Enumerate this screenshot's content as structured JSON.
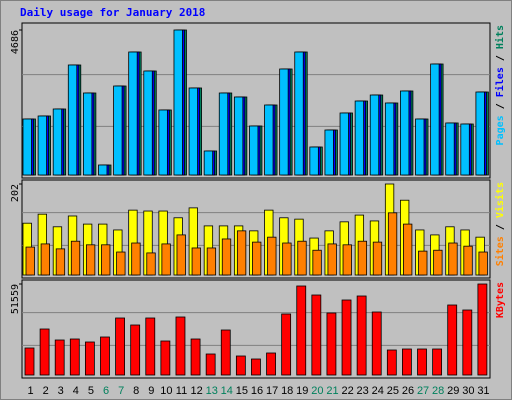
{
  "chart_data": [
    {
      "type": "bar",
      "title": "Daily usage for January 2018",
      "ylim": [
        0,
        4686
      ],
      "yticks": [
        4686
      ],
      "legend_separator": " / ",
      "series": [
        {
          "name": "Hits",
          "color": "#00805c",
          "values": [
            1810,
            1907,
            2133,
            3555,
            2650,
            323,
            2876,
            3975,
            3361,
            2101,
            4686,
            2812,
            776,
            2650,
            2521,
            1584,
            2262,
            3426,
            3975,
            905,
            1454,
            2004,
            2391,
            2585,
            2327,
            2715,
            1810,
            3587,
            1681,
            1648,
            2682
          ]
        },
        {
          "name": "Files",
          "color": "#0000ff",
          "values": [
            1810,
            1907,
            2133,
            3555,
            2650,
            323,
            2876,
            3975,
            3361,
            2101,
            4686,
            2812,
            776,
            2650,
            2521,
            1584,
            2262,
            3426,
            3975,
            905,
            1454,
            2004,
            2391,
            2585,
            2327,
            2715,
            1810,
            3587,
            1681,
            1648,
            2682
          ]
        },
        {
          "name": "Pages",
          "color": "#00c0ff",
          "values": [
            1810,
            1907,
            2133,
            3555,
            2650,
            323,
            2876,
            3975,
            3361,
            2101,
            4686,
            2812,
            776,
            2650,
            2521,
            1584,
            2262,
            3426,
            3975,
            905,
            1454,
            2004,
            2391,
            2585,
            2327,
            2715,
            1810,
            3587,
            1681,
            1648,
            2682
          ]
        }
      ]
    },
    {
      "type": "bar",
      "ylim": [
        0,
        202
      ],
      "yticks": [
        202
      ],
      "legend_separator": " / ",
      "series": [
        {
          "name": "Visits",
          "color": "#ffff00",
          "values": [
            115,
            135,
            107,
            131,
            113,
            113,
            100,
            144,
            142,
            142,
            127,
            149,
            109,
            109,
            109,
            98,
            144,
            127,
            124,
            82,
            98,
            118,
            133,
            120,
            202,
            166,
            100,
            89,
            107,
            100,
            84
          ]
        },
        {
          "name": "Sites",
          "color": "#ff8000",
          "values": [
            62,
            69,
            58,
            75,
            67,
            67,
            51,
            71,
            49,
            69,
            89,
            60,
            60,
            80,
            98,
            73,
            84,
            71,
            75,
            55,
            69,
            67,
            75,
            73,
            138,
            113,
            53,
            55,
            71,
            64,
            51
          ]
        }
      ]
    },
    {
      "type": "bar",
      "ylim": [
        0,
        51559
      ],
      "yticks": [
        51559
      ],
      "categories": [
        "1",
        "2",
        "3",
        "4",
        "5",
        "6",
        "7",
        "8",
        "9",
        "10",
        "11",
        "12",
        "13",
        "14",
        "15",
        "16",
        "17",
        "18",
        "19",
        "20",
        "21",
        "22",
        "23",
        "24",
        "25",
        "26",
        "27",
        "28",
        "29",
        "30",
        "31"
      ],
      "highlight_categories": [
        "6",
        "7",
        "13",
        "14",
        "20",
        "21",
        "27",
        "28"
      ],
      "highlight_color": "#00805c",
      "category_color": "#000000",
      "series": [
        {
          "name": "KBytes",
          "color": "#ff0000",
          "values": [
            15298,
            26063,
            19830,
            20397,
            18697,
            21530,
            32295,
            28329,
            32295,
            19264,
            32862,
            20397,
            11898,
            25496,
            10765,
            9065,
            12465,
            34561,
            50426,
            45326,
            35128,
            42494,
            44760,
            35694,
            14164,
            14731,
            14731,
            14731,
            39660,
            36827,
            51559
          ]
        }
      ]
    }
  ]
}
